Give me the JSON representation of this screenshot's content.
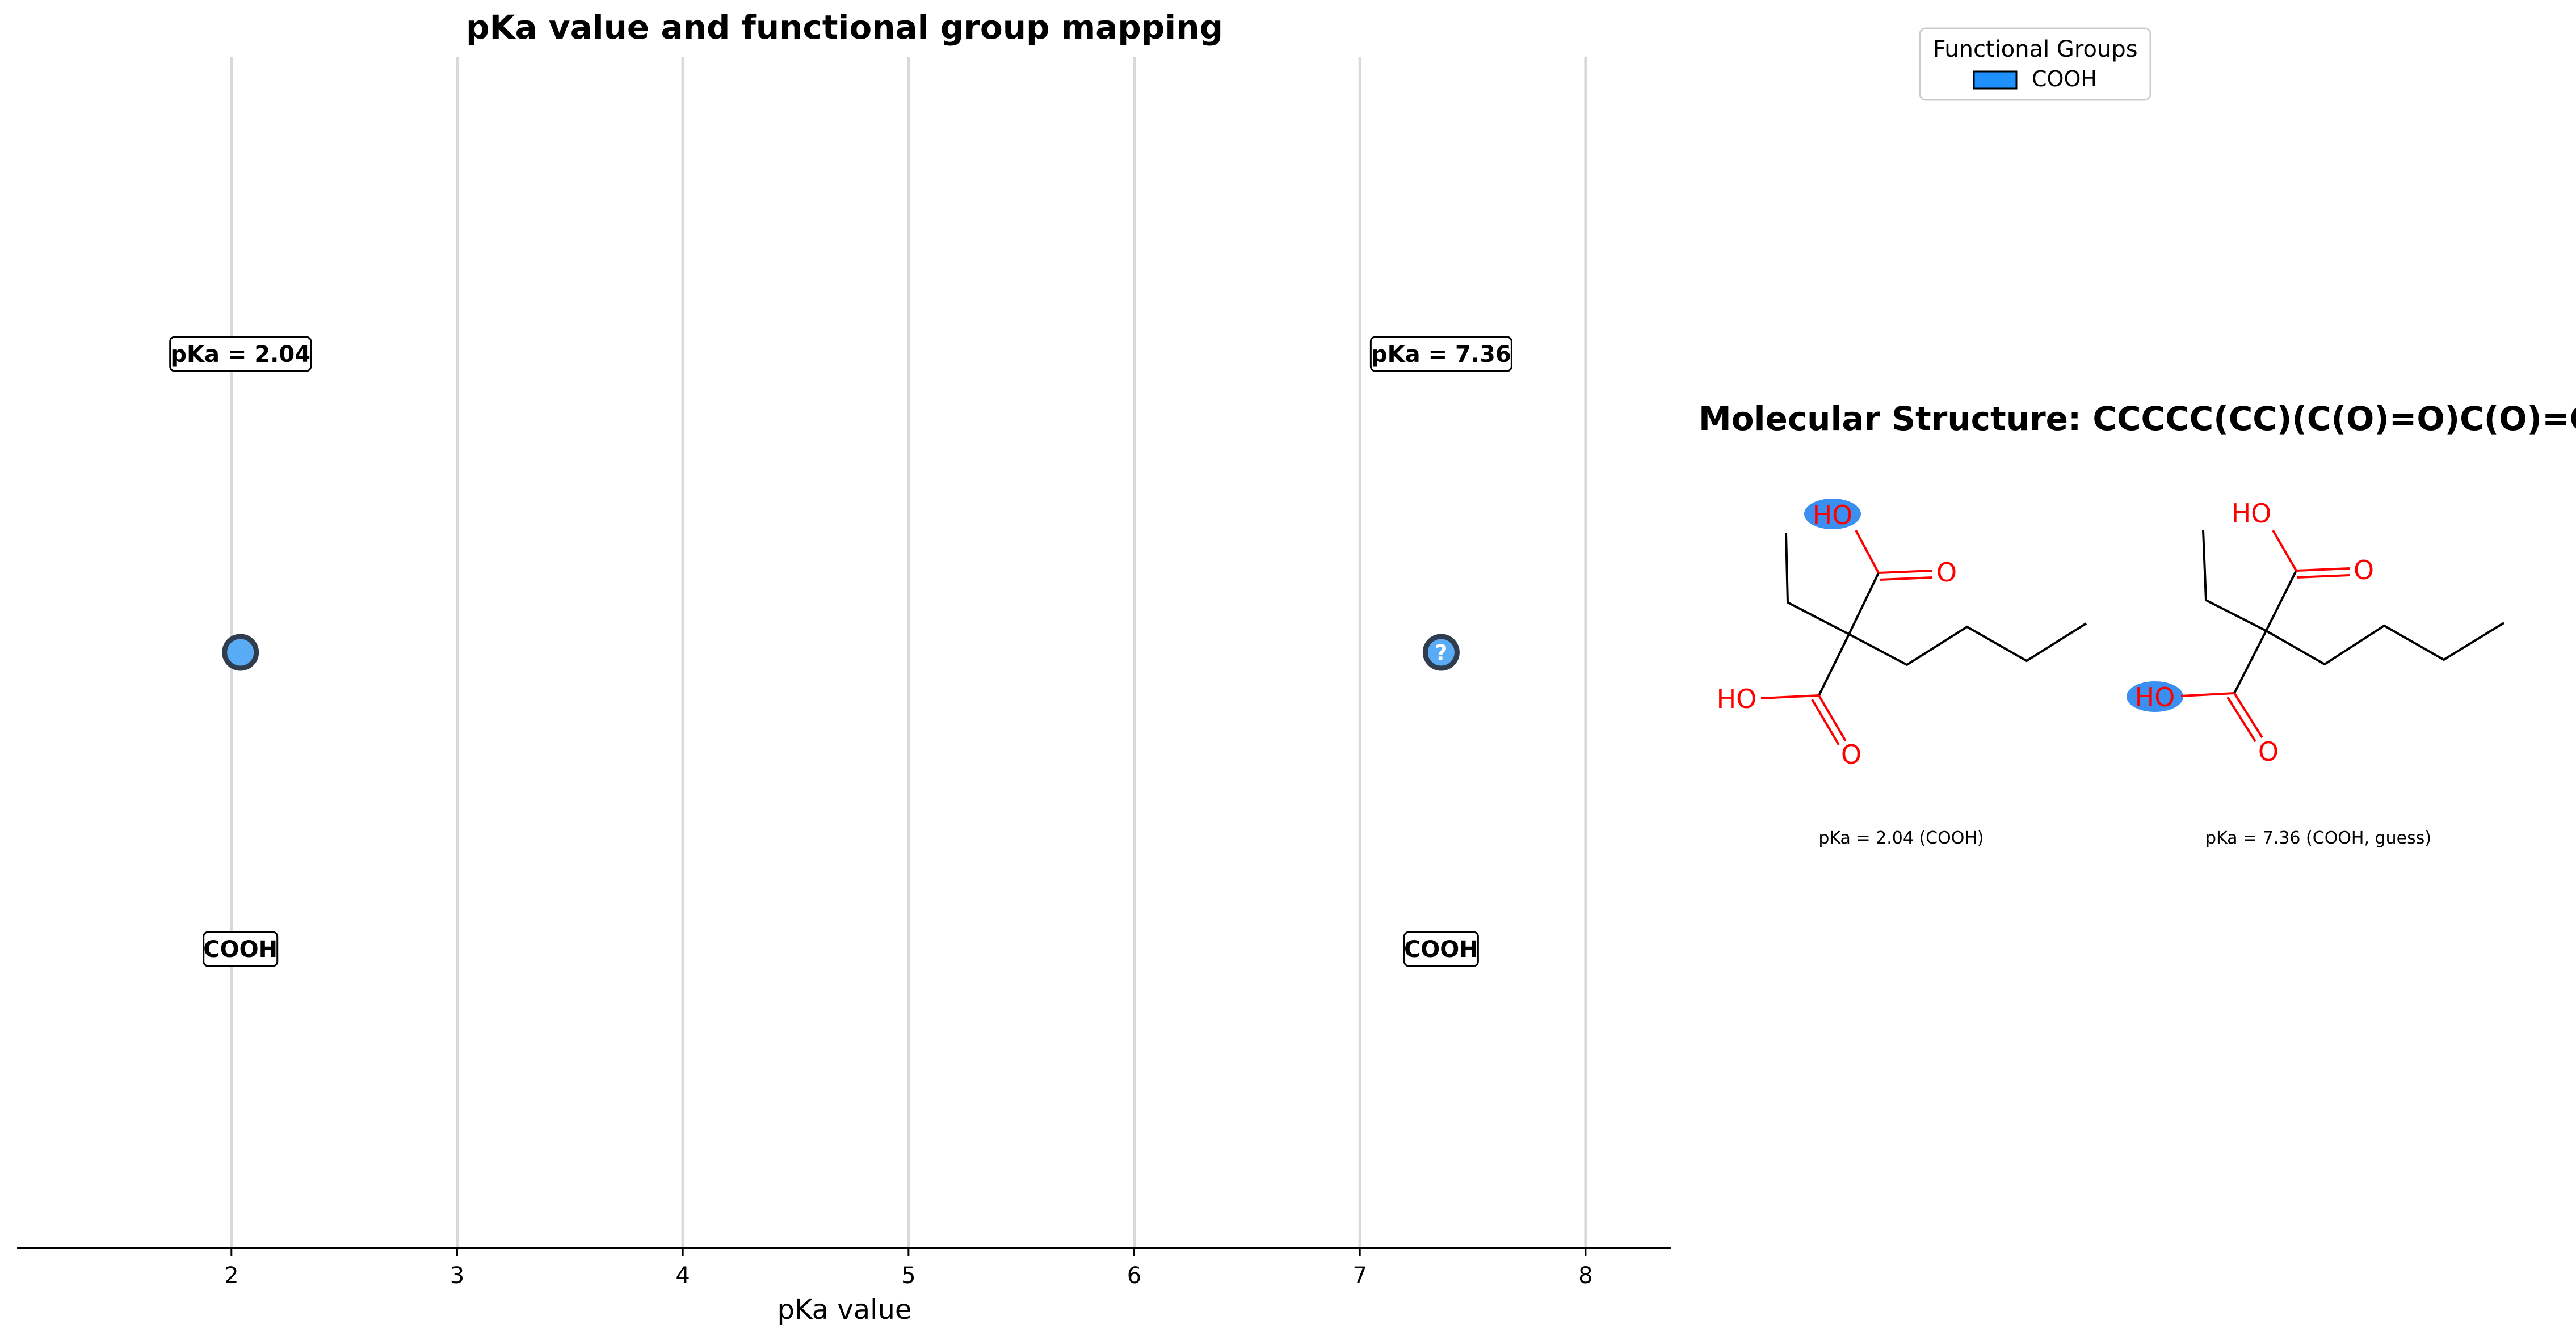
{
  "chart_data": {
    "type": "scatter",
    "title": "pKa value and functional group mapping",
    "xlabel": "pKa value",
    "xlim": [
      1.05,
      8.38
    ],
    "xticks": [
      "2",
      "3",
      "4",
      "5",
      "6",
      "7",
      "8"
    ],
    "grid": "vertical",
    "points": [
      {
        "x": 2.04,
        "label": "pKa = 2.04",
        "group": "COOH",
        "marker": ""
      },
      {
        "x": 7.36,
        "label": "pKa = 7.36",
        "group": "COOH",
        "marker": "?"
      }
    ],
    "legend": {
      "title": "Functional Groups",
      "placement": "top-right",
      "entries": [
        {
          "name": "COOH",
          "color": "#1e90ff"
        }
      ]
    }
  },
  "molecule": {
    "title": "Molecular Structure: CCCCC(CC)(C(O)=O)C(O)=O",
    "panels": [
      {
        "caption": "pKa = 2.04 (COOH)",
        "highlight": "upper-HO"
      },
      {
        "caption": "pKa = 7.36 (COOH, guess)",
        "highlight": "lower-HO"
      }
    ],
    "atoms": {
      "ho": "HO",
      "o": "O"
    }
  },
  "colors": {
    "marker_fill": "#5aabf5",
    "marker_edge": "#2f3d4f",
    "highlight": "#3b8ff0",
    "heteroatom": "#ff0000",
    "grid": "#d9d9d9"
  }
}
